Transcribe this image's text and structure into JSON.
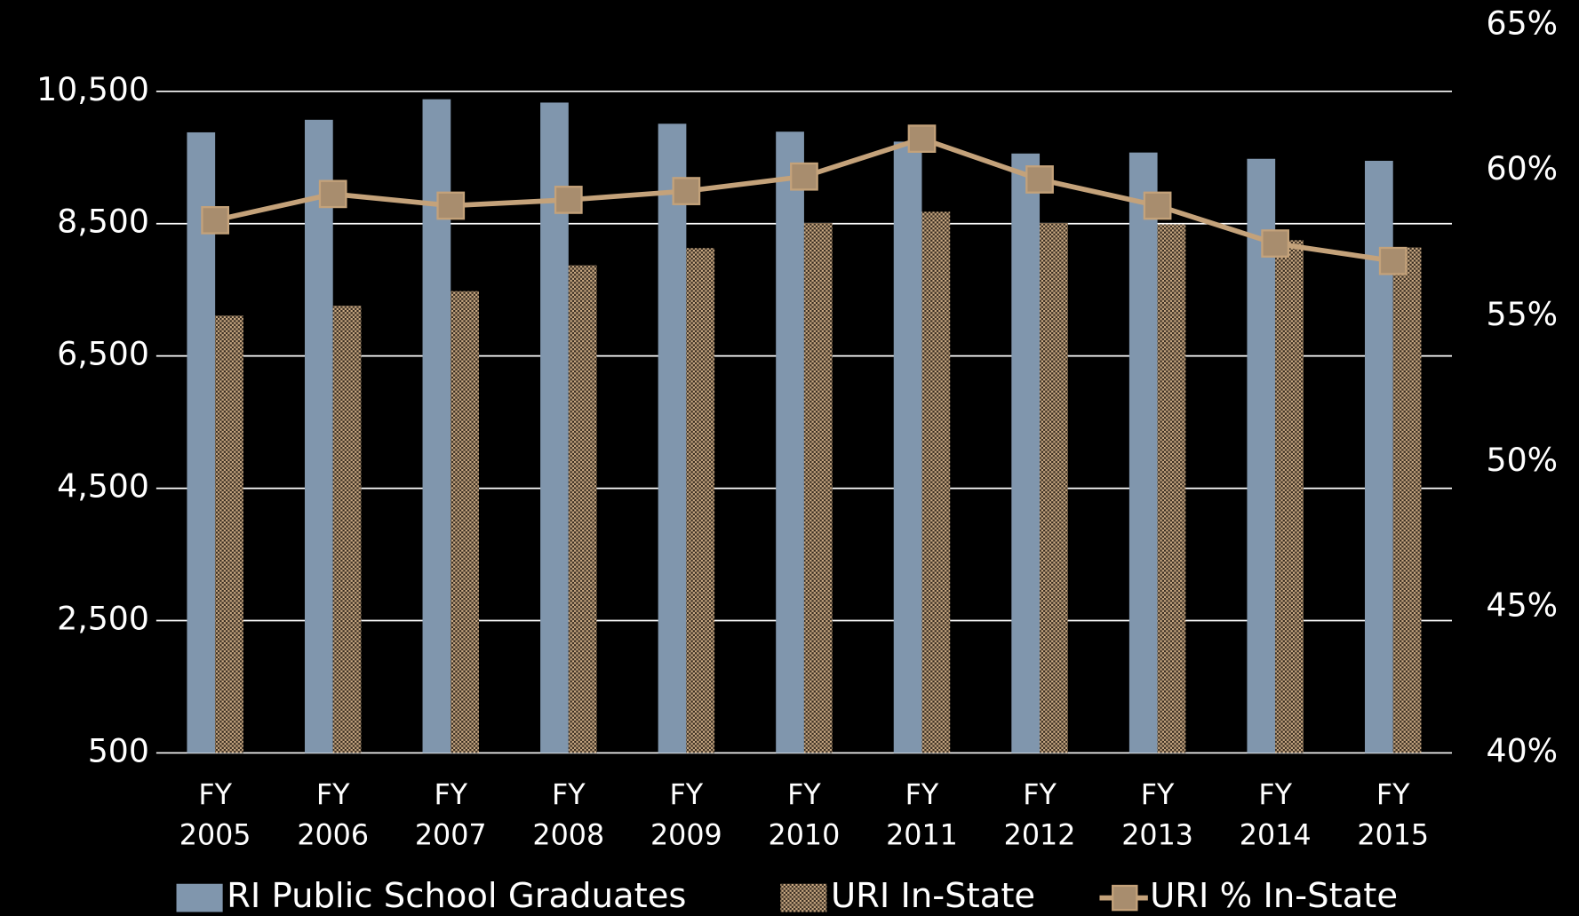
{
  "chart_data": {
    "type": "bar",
    "categories": [
      "FY 2005",
      "FY 2006",
      "FY 2007",
      "FY 2008",
      "FY 2009",
      "FY 2010",
      "FY 2011",
      "FY 2012",
      "FY 2013",
      "FY 2014",
      "FY 2015"
    ],
    "series": [
      {
        "name": "RI Public School Graduates",
        "type": "bar",
        "color": "#8096ad",
        "values": [
          9880,
          10070,
          10380,
          10330,
          10010,
          9890,
          9740,
          9560,
          9575,
          9480,
          9450
        ]
      },
      {
        "name": "URI In-State",
        "type": "bar",
        "color": "#c8a882",
        "pattern": "dots",
        "values": [
          7110,
          7260,
          7480,
          7870,
          8130,
          8510,
          8680,
          8510,
          8490,
          8250,
          8140
        ]
      },
      {
        "name": "URI % In-State",
        "type": "line",
        "axis": "y2",
        "color": "#c4a27a",
        "values": [
          58.3,
          59.2,
          58.8,
          59.0,
          59.3,
          59.8,
          61.1,
          59.7,
          58.8,
          57.5,
          56.9
        ]
      }
    ],
    "ylim": [
      500,
      11500
    ],
    "yticks": [
      500,
      {
        "value": 2500,
        "label": "2,500"
      },
      {
        "value": 4500,
        "label": "4,500"
      },
      {
        "value": 6500,
        "label": "6,500"
      },
      {
        "value": 8500,
        "label": "8,500"
      },
      {
        "value": 10500,
        "label": "10,500"
      }
    ],
    "y2lim": [
      40,
      65
    ],
    "y2ticks": [
      {
        "value": 40,
        "label": "40%"
      },
      {
        "value": 45,
        "label": "45%"
      },
      {
        "value": 50,
        "label": "50%"
      },
      {
        "value": 55,
        "label": "55%"
      },
      {
        "value": 60,
        "label": "60%"
      },
      {
        "value": 65,
        "label": "65%"
      }
    ],
    "grid": true,
    "legend": "bottom"
  }
}
